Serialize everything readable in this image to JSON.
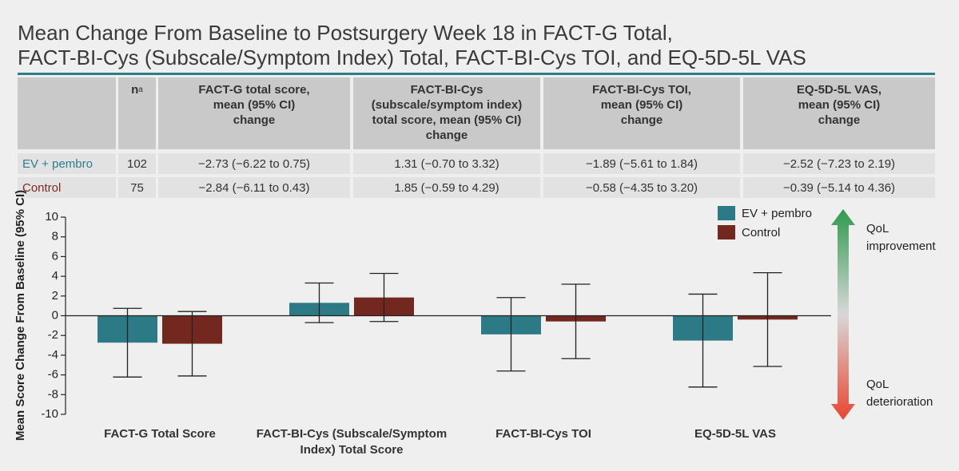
{
  "title": [
    "Mean Change From Baseline to Postsurgery Week 18 in FACT-G Total,",
    "FACT-BI-Cys (Subscale/Symptom Index) Total, FACT-BI-Cys TOI, and EQ-5D-5L VAS"
  ],
  "table": {
    "columns": [
      {
        "text": "n",
        "superscript": "a"
      },
      "FACT-G total score,\nmean (95% CI)\nchange",
      "FACT-BI-Cys\n(subscale/symptom index)\ntotal score, mean (95% CI)\nchange",
      "FACT-BI-Cys TOI,\nmean (95% CI)\nchange",
      "EQ-5D-5L VAS,\nmean (95% CI)\nchange"
    ],
    "rows": [
      {
        "label": "EV + pembro",
        "color": "#2a7f8a",
        "cells": [
          "102",
          "−2.73 (−6.22 to 0.75)",
          "1.31 (−0.70 to 3.32)",
          "−1.89 (−5.61 to 1.84)",
          "−2.52 (−7.23 to 2.19)"
        ]
      },
      {
        "label": "Control",
        "color": "#7a2a22",
        "cells": [
          "75",
          "−2.84 (−6.11 to 0.43)",
          "1.85 (−0.59 to 4.29)",
          "−0.58 (−4.35 to 3.20)",
          "−0.39 (−5.14 to 4.36)"
        ]
      }
    ]
  },
  "chart_data": {
    "type": "bar",
    "ylabel": "Mean Score Change From Baseline (95% CI)",
    "categories": [
      "FACT-G Total Score",
      "FACT-BI-Cys (Subscale/Symptom Index) Total Score",
      "FACT-BI-Cys TOI",
      "EQ-5D-5L VAS"
    ],
    "series": [
      {
        "name": "EV + pembro",
        "color": "#2c7a85",
        "values": [
          -2.73,
          1.31,
          -1.89,
          -2.52
        ],
        "lower": [
          -6.22,
          -0.7,
          -5.61,
          -7.23
        ],
        "upper": [
          0.75,
          3.32,
          1.84,
          2.19
        ]
      },
      {
        "name": "Control",
        "color": "#72281f",
        "values": [
          -2.84,
          1.85,
          -0.58,
          -0.39
        ],
        "lower": [
          -6.11,
          -0.59,
          -4.35,
          -5.14
        ],
        "upper": [
          0.43,
          4.29,
          3.2,
          4.36
        ]
      }
    ],
    "ylim": [
      -10,
      10
    ],
    "yticks": [
      -10,
      -8,
      -6,
      -4,
      -2,
      0,
      2,
      4,
      6,
      8,
      10
    ],
    "annotations": {
      "top": [
        "QoL",
        "improvement"
      ],
      "bottom": [
        "QoL",
        "deterioration"
      ]
    }
  }
}
